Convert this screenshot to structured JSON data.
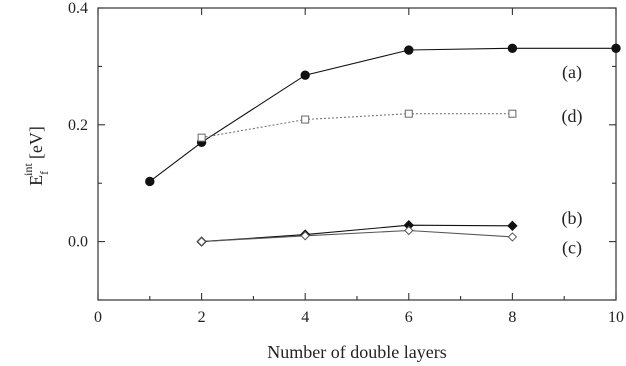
{
  "chart_data": {
    "type": "line",
    "xlabel": "Number of double layers",
    "ylabel_main": "E",
    "ylabel_sub": "f",
    "ylabel_sup": "int",
    "ylabel_unit": "[eV]",
    "xlim": [
      0,
      10
    ],
    "ylim": [
      -0.1,
      0.4
    ],
    "xticks": [
      "0",
      "2",
      "4",
      "6",
      "8",
      "10"
    ],
    "yticks": [
      "0.0",
      "0.2",
      "0.4"
    ],
    "xtick_values": [
      0,
      2,
      4,
      6,
      8,
      10
    ],
    "ytick_values": [
      0.0,
      0.2,
      0.4
    ],
    "grid": false,
    "series": [
      {
        "name": "(a)",
        "marker": "filled-circle",
        "line": "solid",
        "color": "#111111",
        "x": [
          1,
          2,
          4,
          6,
          8,
          10
        ],
        "y": [
          0.103,
          0.17,
          0.285,
          0.328,
          0.331,
          0.331
        ]
      },
      {
        "name": "(d)",
        "marker": "open-square",
        "line": "dotted",
        "color": "#777777",
        "x": [
          2,
          4,
          6,
          8
        ],
        "y": [
          0.178,
          0.209,
          0.219,
          0.219
        ]
      },
      {
        "name": "(b)",
        "marker": "filled-diamond",
        "line": "solid",
        "color": "#111111",
        "x": [
          2,
          4,
          6,
          8
        ],
        "y": [
          0.0,
          0.012,
          0.028,
          0.027
        ]
      },
      {
        "name": "(c)",
        "marker": "open-diamond",
        "line": "solid",
        "color": "#555555",
        "x": [
          2,
          4,
          6,
          8
        ],
        "y": [
          0.0,
          0.01,
          0.019,
          0.008
        ]
      }
    ],
    "label_positions": {
      "(a)": 0.29,
      "(d)": 0.215,
      "(b)": 0.04,
      "(c)": -0.01
    }
  }
}
